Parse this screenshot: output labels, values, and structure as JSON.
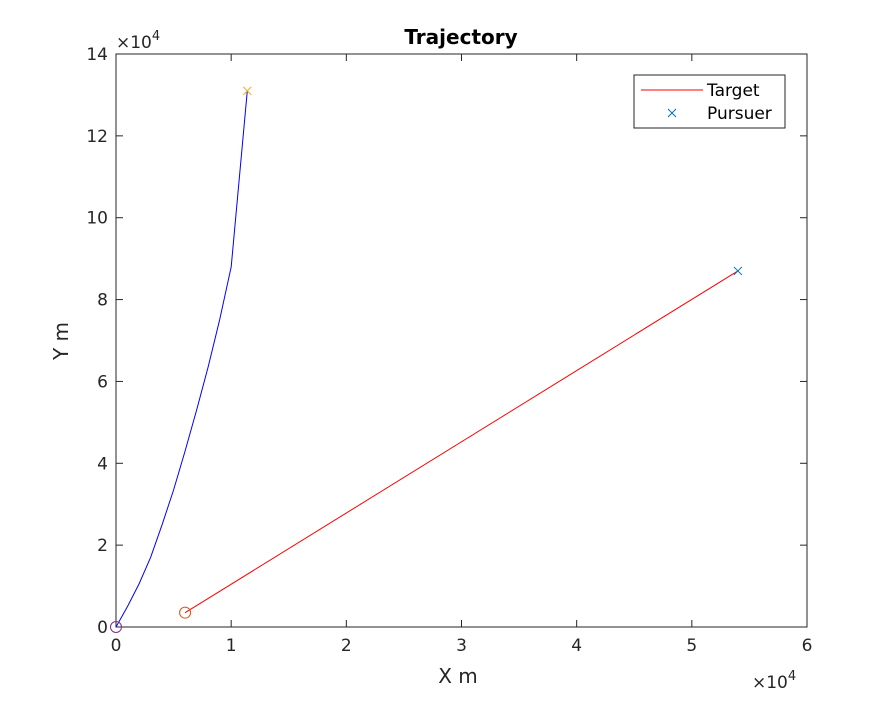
{
  "chart_data": {
    "type": "line",
    "title": "Trajectory",
    "xlabel": "X m",
    "ylabel": "Y m",
    "xlim": [
      0,
      60000
    ],
    "ylim": [
      0,
      140000
    ],
    "x_ticks": [
      0,
      10000,
      20000,
      30000,
      40000,
      50000,
      60000
    ],
    "y_ticks": [
      0,
      20000,
      40000,
      60000,
      80000,
      100000,
      120000,
      140000
    ],
    "x_tick_labels": [
      "0",
      "1",
      "2",
      "3",
      "4",
      "5",
      "6"
    ],
    "y_tick_labels": [
      "0",
      "2",
      "4",
      "6",
      "8",
      "10",
      "12",
      "14"
    ],
    "x_exponent": "×10",
    "x_exponent_power": "4",
    "y_exponent": "×10",
    "y_exponent_power": "4",
    "grid": false,
    "legend_position": "top-right",
    "legend": [
      {
        "label": "Target",
        "marker": "line",
        "color": "#ff0000"
      },
      {
        "label": "Pursuer",
        "marker": "x",
        "color": "#0072bd"
      }
    ],
    "series": [
      {
        "name": "Target",
        "color": "#ff0000",
        "x": [
          6000,
          54000
        ],
        "y": [
          3500,
          87000
        ],
        "start_marker": {
          "shape": "circle",
          "color": "#d95319"
        },
        "end_marker": {
          "shape": "x",
          "color": "#0072bd"
        }
      },
      {
        "name": "Pursuer",
        "color": "#0000ff",
        "x": [
          0,
          1000,
          2000,
          3000,
          4000,
          5000,
          6000,
          7000,
          8000,
          9000,
          10000,
          11400
        ],
        "y": [
          0,
          5000,
          10500,
          17000,
          25000,
          33500,
          43000,
          53000,
          63500,
          75000,
          88000,
          131000
        ],
        "start_marker": {
          "shape": "circle",
          "color": "#7e2f8e"
        },
        "end_marker": {
          "shape": "x",
          "color": "#edb120"
        }
      }
    ]
  }
}
